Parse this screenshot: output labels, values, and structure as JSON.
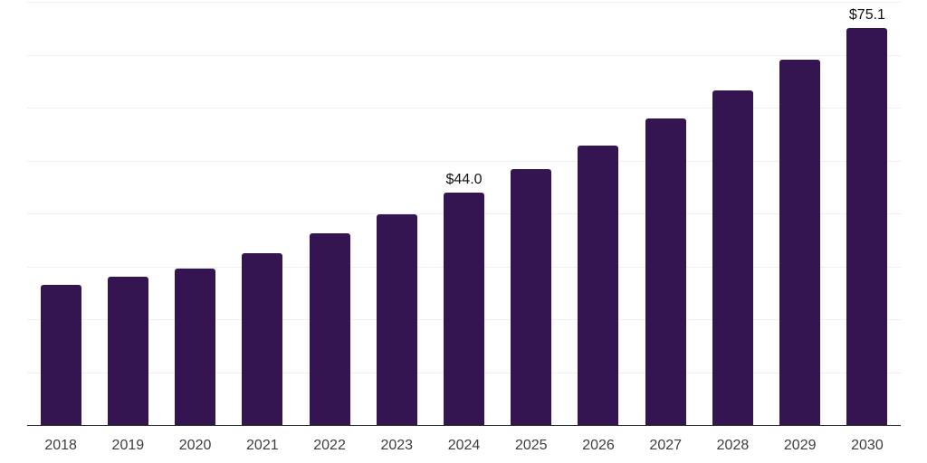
{
  "chart_data": {
    "type": "bar",
    "title": "",
    "xlabel": "",
    "ylabel": "",
    "categories": [
      "2018",
      "2019",
      "2020",
      "2021",
      "2022",
      "2023",
      "2024",
      "2025",
      "2026",
      "2027",
      "2028",
      "2029",
      "2030"
    ],
    "values": [
      26.5,
      28.1,
      29.5,
      32.5,
      36.2,
      39.8,
      44.0,
      48.4,
      52.9,
      57.9,
      63.3,
      69.0,
      75.1
    ],
    "bar_labels": {
      "2024": "$44.0",
      "2030": "$75.1"
    },
    "ylim": [
      0,
      80
    ],
    "gridline_step": 10,
    "grid": "horizontal-only",
    "legend_position": "none",
    "y_axis_tick_labels_visible": false,
    "colors": {
      "bar": "#341551",
      "axis_line": "#2d2d2d",
      "gridline": "#f0f0f0",
      "tick_label": "#3d3d3d",
      "value_label": "#111111",
      "background": "#ffffff"
    }
  }
}
